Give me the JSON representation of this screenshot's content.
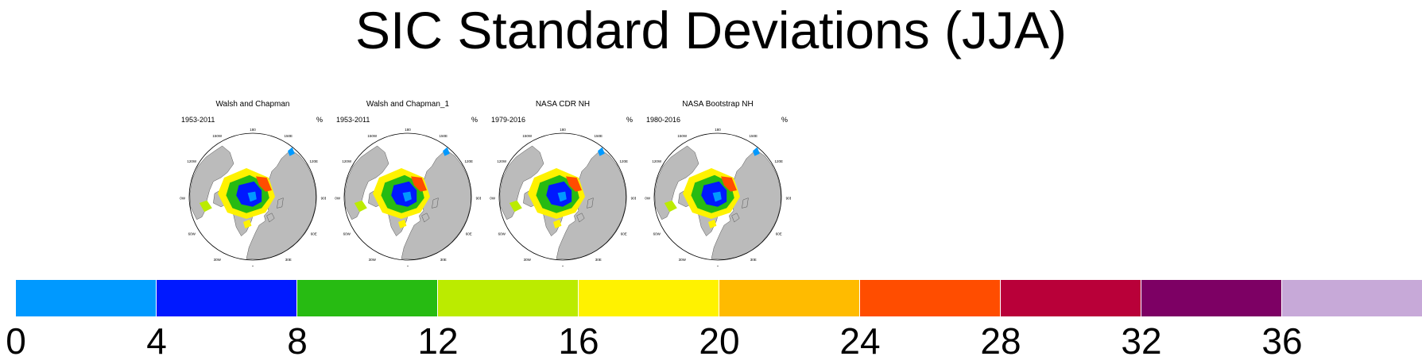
{
  "title": "SIC Standard Deviations (JJA)",
  "panels": [
    {
      "name": "Walsh and Chapman",
      "period": "1953-2011",
      "unit": "%"
    },
    {
      "name": "Walsh and Chapman_1",
      "period": "1953-2011",
      "unit": "%"
    },
    {
      "name": "NASA CDR NH",
      "period": "1979-2016",
      "unit": "%"
    },
    {
      "name": "NASA Bootstrap NH",
      "period": "1980-2016",
      "unit": "%"
    }
  ],
  "map_labels": {
    "n180": "180",
    "w150": "150W",
    "e150": "150E",
    "w120": "120W",
    "e120": "120E",
    "w90": "90W",
    "e90": "90E",
    "w60": "60W",
    "e60": "60E",
    "w30": "30W",
    "e30": "30E",
    "zero": "0"
  },
  "colorbar": {
    "levels": [
      "0",
      "4",
      "8",
      "12",
      "16",
      "20",
      "24",
      "28",
      "32",
      "36"
    ],
    "colors": [
      "#0099ff",
      "#0019ff",
      "#27bb12",
      "#bbeb00",
      "#fff200",
      "#ffbb00",
      "#ff4d00",
      "#b90039",
      "#7d0064",
      "#c7a9d8"
    ]
  },
  "colors": {
    "land": "#bbbbbb",
    "ocean": "#ffffff"
  }
}
